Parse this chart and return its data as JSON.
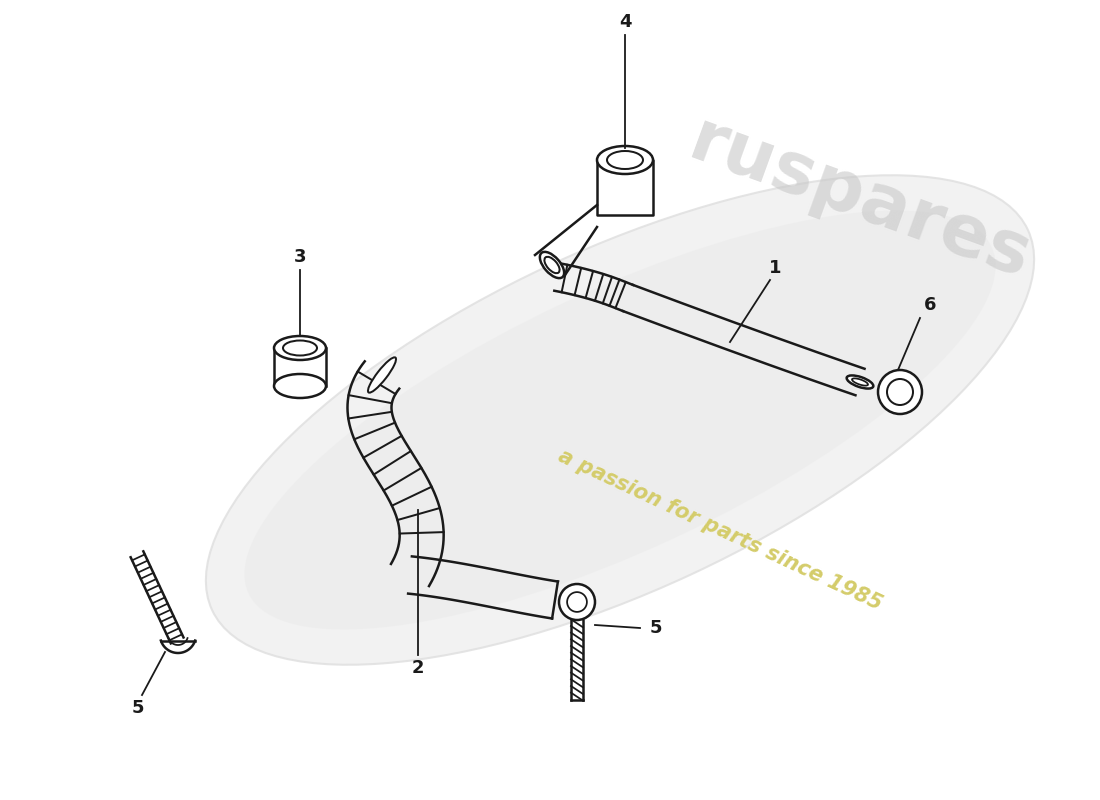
{
  "background_color": "#ffffff",
  "line_color": "#1a1a1a",
  "watermark_text": "a passion for parts since 1985",
  "watermark_color": "#d4cc6a",
  "figsize": [
    11.0,
    8.0
  ],
  "dpi": 100
}
